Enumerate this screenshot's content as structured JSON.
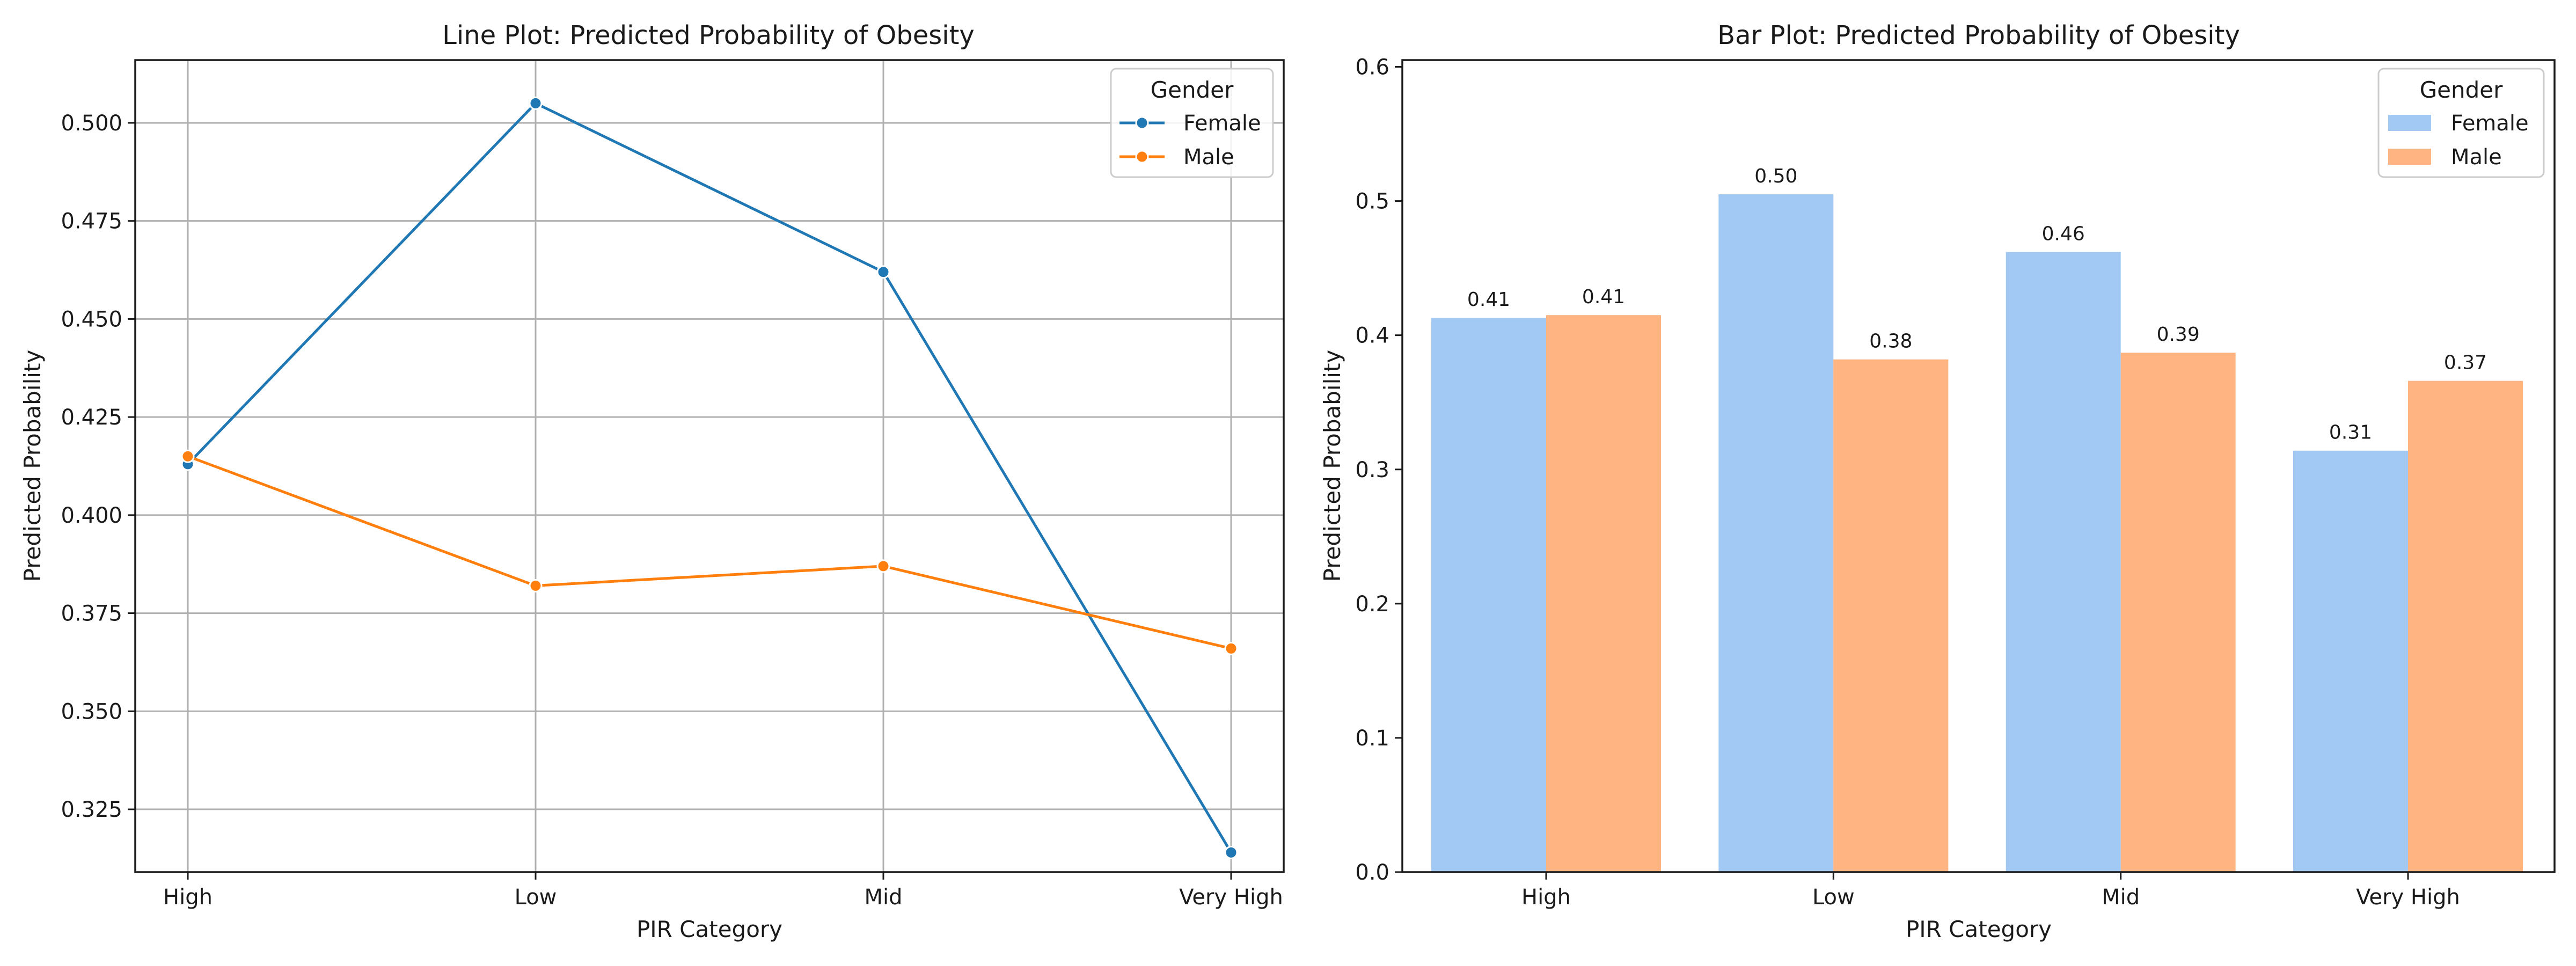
{
  "chart_data": [
    {
      "type": "line",
      "title": "Line Plot: Predicted Probability of Obesity",
      "xlabel": "PIR Category",
      "ylabel": "Predicted Probability",
      "categories": [
        "High",
        "Low",
        "Mid",
        "Very High"
      ],
      "ylim": [
        0.309,
        0.516
      ],
      "yticks": [
        0.325,
        0.35,
        0.375,
        0.4,
        0.425,
        0.45,
        0.475,
        0.5
      ],
      "ytick_labels": [
        "0.325",
        "0.350",
        "0.375",
        "0.400",
        "0.425",
        "0.450",
        "0.475",
        "0.500"
      ],
      "grid": true,
      "legend": {
        "title": "Gender",
        "placement": "top-right"
      },
      "series": [
        {
          "name": "Female",
          "color": "#1f77b4",
          "values": [
            0.413,
            0.505,
            0.462,
            0.314
          ]
        },
        {
          "name": "Male",
          "color": "#ff7f0e",
          "values": [
            0.415,
            0.382,
            0.387,
            0.366
          ]
        }
      ]
    },
    {
      "type": "bar",
      "title": "Bar Plot: Predicted Probability of Obesity",
      "xlabel": "PIR Category",
      "ylabel": "Predicted Probability",
      "categories": [
        "High",
        "Low",
        "Mid",
        "Very High"
      ],
      "ylim": [
        0,
        0.605
      ],
      "yticks": [
        0.0,
        0.1,
        0.2,
        0.3,
        0.4,
        0.5,
        0.6
      ],
      "ytick_labels": [
        "0.0",
        "0.1",
        "0.2",
        "0.3",
        "0.4",
        "0.5",
        "0.6"
      ],
      "grid": false,
      "legend": {
        "title": "Gender",
        "placement": "top-right"
      },
      "series": [
        {
          "name": "Female",
          "color": "#a1c9f4",
          "values": [
            0.413,
            0.505,
            0.462,
            0.314
          ],
          "labels": [
            "0.41",
            "0.50",
            "0.46",
            "0.31"
          ]
        },
        {
          "name": "Male",
          "color": "#ffb482",
          "values": [
            0.415,
            0.382,
            0.387,
            0.366
          ],
          "labels": [
            "0.41",
            "0.38",
            "0.39",
            "0.37"
          ]
        }
      ]
    }
  ]
}
